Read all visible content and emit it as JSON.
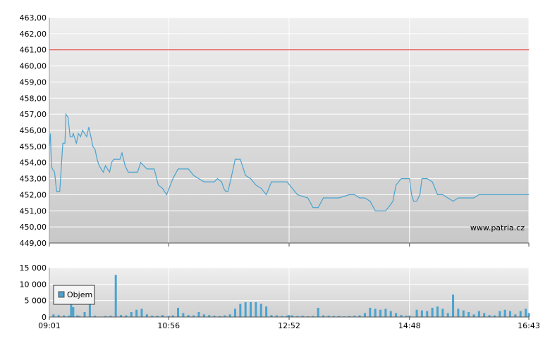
{
  "chart_data": [
    {
      "type": "line",
      "y_tick_labels": [
        "463,00",
        "462,00",
        "461,00",
        "460,00",
        "459,00",
        "458,00",
        "457,00",
        "456,00",
        "455,00",
        "454,00",
        "453,00",
        "452,00",
        "451,00",
        "450,00",
        "449,00"
      ],
      "ylim": [
        449,
        463
      ],
      "x_range": [
        "09:01",
        "16:43"
      ],
      "grid": true,
      "reference_line": {
        "value": 461.0,
        "color": "#e03030"
      },
      "series_color": "#4aa3cf",
      "watermark": "www.patria.cz",
      "series": [
        {
          "x": [
            "09:01",
            "09:02",
            "09:03",
            "09:04",
            "09:06",
            "09:08",
            "09:11",
            "09:14",
            "09:16",
            "09:17",
            "09:19",
            "09:21",
            "09:23",
            "09:24",
            "09:27",
            "09:29",
            "09:31",
            "09:33",
            "09:35",
            "09:37",
            "09:39",
            "09:41",
            "09:43",
            "09:45",
            "09:47",
            "09:49",
            "09:51",
            "09:53",
            "09:55",
            "09:57",
            "09:59",
            "10:01",
            "10:03",
            "10:05",
            "10:07",
            "10:09",
            "10:11",
            "10:14",
            "10:17",
            "10:20",
            "10:23",
            "10:26",
            "10:29",
            "10:32",
            "10:35",
            "10:38",
            "10:42",
            "10:46",
            "10:50",
            "10:54",
            "11:00",
            "11:05",
            "11:10",
            "11:15",
            "11:20",
            "11:25",
            "11:30",
            "11:35",
            "11:40",
            "11:43",
            "11:47",
            "11:49",
            "11:51",
            "11:53",
            "11:56",
            "12:00",
            "12:05",
            "12:10",
            "12:15",
            "12:20",
            "12:25",
            "12:30",
            "12:35",
            "12:40",
            "12:50",
            "13:00",
            "13:10",
            "13:15",
            "13:20",
            "13:25",
            "13:30",
            "13:40",
            "13:50",
            "13:55",
            "14:00",
            "14:05",
            "14:10",
            "14:15",
            "14:20",
            "14:25",
            "14:30",
            "14:32",
            "14:35",
            "14:40",
            "14:48",
            "14:50",
            "14:52",
            "14:55",
            "14:58",
            "15:00",
            "15:05",
            "15:10",
            "15:15",
            "15:20",
            "15:25",
            "15:30",
            "15:35",
            "15:40",
            "15:42",
            "15:45",
            "15:50",
            "15:55",
            "16:00",
            "16:05",
            "16:10",
            "16:15",
            "16:20",
            "16:25",
            "16:28",
            "16:31",
            "16:33",
            "16:35",
            "16:38",
            "16:40",
            "16:43"
          ],
          "values": [
            455.0,
            455.8,
            453.8,
            453.6,
            453.4,
            452.2,
            452.2,
            455.2,
            455.2,
            457.0,
            456.8,
            455.6,
            455.6,
            455.8,
            455.2,
            455.8,
            455.6,
            456.0,
            455.8,
            455.6,
            456.2,
            455.6,
            455.0,
            454.8,
            454.2,
            453.8,
            453.6,
            453.4,
            453.8,
            453.6,
            453.4,
            454.0,
            454.2,
            454.2,
            454.2,
            454.2,
            454.6,
            453.8,
            453.4,
            453.4,
            453.4,
            453.4,
            454.0,
            453.8,
            453.6,
            453.6,
            453.6,
            452.6,
            452.4,
            452.0,
            453.0,
            453.6,
            453.6,
            453.6,
            453.2,
            453.0,
            452.8,
            452.8,
            452.8,
            453.0,
            452.8,
            452.4,
            452.2,
            452.2,
            453.0,
            454.2,
            454.2,
            453.2,
            453.0,
            452.6,
            452.4,
            452.0,
            452.8,
            452.8,
            452.8,
            452.0,
            451.8,
            451.2,
            451.2,
            451.8,
            451.8,
            451.8,
            452.0,
            452.0,
            451.8,
            451.8,
            451.6,
            451.0,
            451.0,
            451.0,
            451.4,
            451.6,
            452.6,
            453.0,
            453.0,
            452.0,
            451.6,
            451.6,
            452.0,
            453.0,
            453.0,
            452.8,
            452.0,
            452.0,
            451.8,
            451.6,
            451.8,
            451.8,
            451.8,
            451.8,
            451.8,
            452.0,
            452.0,
            452.0,
            452.0,
            452.0,
            452.0,
            452.0,
            452.0,
            452.0,
            452.0,
            452.0,
            452.0,
            452.0,
            452.0
          ]
        }
      ]
    },
    {
      "type": "bar",
      "legend": {
        "label": "Objem",
        "placement": "top-left"
      },
      "y_tick_labels": [
        "15 000",
        "10 000",
        "5 000",
        "0"
      ],
      "ylim": [
        0,
        15000
      ],
      "x_tick_labels": [
        "09:01",
        "10:56",
        "12:52",
        "14:48",
        "16:43"
      ],
      "grid": true,
      "series_color": "#4aa3cf",
      "series": [
        {
          "name": "Objem",
          "x": [
            "09:05",
            "09:10",
            "09:15",
            "09:20",
            "09:22",
            "09:24",
            "09:28",
            "09:30",
            "09:35",
            "09:40",
            "09:45",
            "09:55",
            "10:00",
            "10:05",
            "10:10",
            "10:15",
            "10:20",
            "10:25",
            "10:30",
            "10:35",
            "10:40",
            "10:45",
            "10:50",
            "10:56",
            "11:00",
            "11:05",
            "11:10",
            "11:15",
            "11:20",
            "11:25",
            "11:30",
            "11:35",
            "11:40",
            "11:45",
            "11:50",
            "11:55",
            "12:00",
            "12:05",
            "12:10",
            "12:15",
            "12:20",
            "12:25",
            "12:30",
            "12:35",
            "12:40",
            "12:45",
            "12:50",
            "12:52",
            "12:55",
            "13:00",
            "13:05",
            "13:10",
            "13:15",
            "13:20",
            "13:25",
            "13:30",
            "13:35",
            "13:40",
            "13:45",
            "13:50",
            "13:55",
            "14:00",
            "14:05",
            "14:10",
            "14:15",
            "14:20",
            "14:25",
            "14:30",
            "14:35",
            "14:40",
            "14:45",
            "14:48",
            "14:55",
            "15:00",
            "15:05",
            "15:10",
            "15:15",
            "15:20",
            "15:25",
            "15:30",
            "15:35",
            "15:40",
            "15:45",
            "15:50",
            "15:55",
            "16:00",
            "16:05",
            "16:10",
            "16:15",
            "16:20",
            "16:25",
            "16:30",
            "16:35",
            "16:40",
            "16:43"
          ],
          "values": [
            800,
            600,
            500,
            400,
            4500,
            3000,
            500,
            300,
            1500,
            6500,
            400,
            300,
            400,
            12800,
            600,
            500,
            1500,
            2200,
            2500,
            800,
            400,
            400,
            600,
            300,
            500,
            2800,
            1200,
            600,
            500,
            1500,
            800,
            600,
            400,
            300,
            500,
            800,
            2500,
            4000,
            4500,
            4500,
            4500,
            4000,
            3200,
            600,
            500,
            300,
            400,
            600,
            500,
            300,
            400,
            200,
            300,
            2800,
            500,
            400,
            300,
            300,
            200,
            300,
            400,
            500,
            1200,
            2800,
            2500,
            2200,
            2500,
            1800,
            1200,
            600,
            400,
            400,
            2200,
            2000,
            1800,
            2800,
            3200,
            2500,
            1200,
            6800,
            2500,
            2000,
            1500,
            800,
            1800,
            1200,
            600,
            500,
            1800,
            2200,
            1800,
            800,
            1800,
            2500,
            1200
          ]
        }
      ]
    }
  ]
}
